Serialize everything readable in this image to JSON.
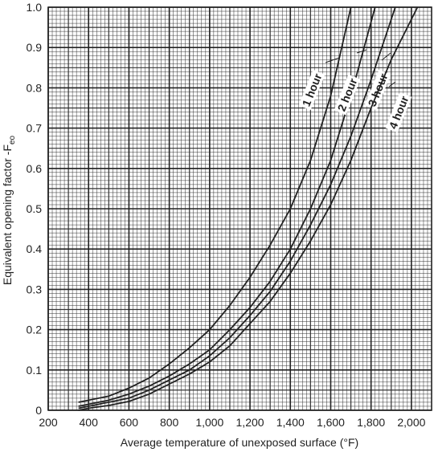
{
  "chart_data": {
    "type": "line",
    "x_label": "Average temperature of unexposed surface (°F)",
    "y_label": "Equivalent opening factor -F",
    "y_label_subscript": "eo",
    "xlim": [
      200,
      2100
    ],
    "ylim": [
      0,
      1
    ],
    "xticks": [
      200,
      400,
      600,
      800,
      {
        "value": 1000,
        "label": "1,000"
      },
      {
        "value": 1200,
        "label": "1,200"
      },
      {
        "value": 1400,
        "label": "1,400"
      },
      {
        "value": 1600,
        "label": "1,600"
      },
      {
        "value": 1800,
        "label": "1,800"
      },
      {
        "value": 2000,
        "label": "2,000"
      }
    ],
    "yticks": [
      0,
      0.1,
      0.2,
      0.3,
      0.4,
      0.5,
      0.6,
      0.7,
      0.8,
      0.9,
      {
        "value": 1,
        "label": "1.0"
      }
    ],
    "grid": true,
    "series": [
      {
        "name": "1 hour",
        "color": "#222222",
        "x": [
          350,
          400,
          500,
          600,
          700,
          800,
          900,
          1000,
          1100,
          1200,
          1300,
          1400,
          1500,
          1600,
          1700
        ],
        "values": [
          0.02,
          0.025,
          0.035,
          0.055,
          0.08,
          0.115,
          0.155,
          0.2,
          0.26,
          0.33,
          0.41,
          0.5,
          0.62,
          0.78,
          1.0
        ]
      },
      {
        "name": "2 hour",
        "color": "#222222",
        "x": [
          350,
          400,
          500,
          600,
          700,
          800,
          900,
          1000,
          1100,
          1200,
          1300,
          1400,
          1500,
          1600,
          1700,
          1820
        ],
        "values": [
          0.01,
          0.015,
          0.025,
          0.04,
          0.06,
          0.085,
          0.115,
          0.15,
          0.2,
          0.255,
          0.32,
          0.4,
          0.5,
          0.62,
          0.78,
          1.0
        ]
      },
      {
        "name": "3 hour",
        "color": "#222222",
        "x": [
          350,
          400,
          500,
          600,
          700,
          800,
          900,
          1000,
          1100,
          1200,
          1300,
          1400,
          1500,
          1600,
          1700,
          1800,
          1920
        ],
        "values": [
          0.005,
          0.01,
          0.02,
          0.03,
          0.05,
          0.075,
          0.1,
          0.135,
          0.18,
          0.235,
          0.295,
          0.37,
          0.46,
          0.56,
          0.68,
          0.82,
          1.0
        ]
      },
      {
        "name": "4 hour",
        "color": "#222222",
        "x": [
          350,
          400,
          500,
          600,
          700,
          800,
          900,
          1000,
          1100,
          1200,
          1300,
          1400,
          1500,
          1600,
          1700,
          1800,
          1900,
          2030
        ],
        "values": [
          0.0,
          0.005,
          0.012,
          0.022,
          0.04,
          0.065,
          0.09,
          0.12,
          0.16,
          0.215,
          0.27,
          0.34,
          0.42,
          0.51,
          0.62,
          0.75,
          0.87,
          1.0
        ]
      }
    ]
  }
}
